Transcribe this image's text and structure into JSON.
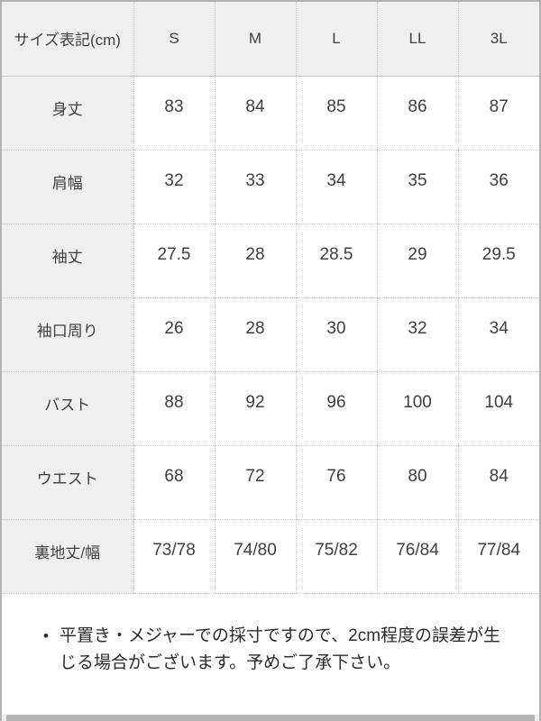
{
  "size_chart": {
    "columns": [
      "サイズ表記(cm)",
      "S",
      "M",
      "L",
      "LL",
      "3L"
    ],
    "rows": [
      {
        "label": "身丈",
        "values": [
          "83",
          "84",
          "85",
          "86",
          "87"
        ]
      },
      {
        "label": "肩幅",
        "values": [
          "32",
          "33",
          "34",
          "35",
          "36"
        ]
      },
      {
        "label": "袖丈",
        "values": [
          "27.5",
          "28",
          "28.5",
          "29",
          "29.5"
        ]
      },
      {
        "label": "袖口周り",
        "values": [
          "26",
          "28",
          "30",
          "32",
          "34"
        ]
      },
      {
        "label": "バスト",
        "values": [
          "88",
          "92",
          "96",
          "100",
          "104"
        ]
      },
      {
        "label": "ウエスト",
        "values": [
          "68",
          "72",
          "76",
          "80",
          "84"
        ]
      },
      {
        "label": "裏地丈/幅",
        "values": [
          "73/78",
          "74/80",
          "75/82",
          "76/84",
          "77/84"
        ]
      }
    ]
  },
  "note": {
    "bullet": "•",
    "text": "平置き・メジャーでの採寸ですので、2cm程度の誤差が生じる場合がございます。予めご了承下さい。"
  },
  "colors": {
    "outer_border": "#b2b2b2",
    "grid_dotted": "#c6c6c6",
    "header_bg": "#efefef",
    "text": "#3f3f3f",
    "scrollbar_thumb": "#b5b5b5",
    "scrollbar_track": "#ececec"
  }
}
